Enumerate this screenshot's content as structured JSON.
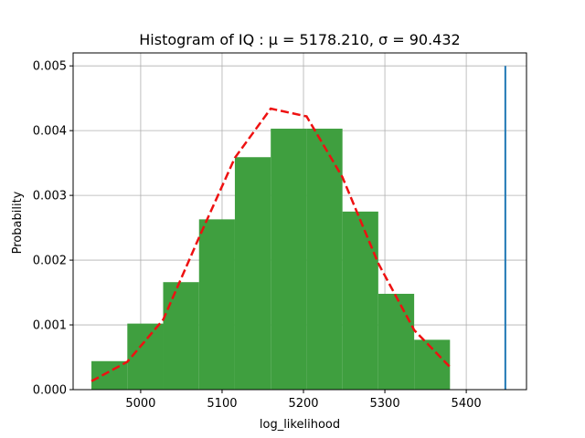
{
  "chart_data": {
    "type": "bar",
    "title": "Histogram of IQ :  μ = 5178.210,  σ = 90.432",
    "xlabel": "log_likelihood",
    "ylabel": "Probability",
    "xlim": [
      4917,
      5474
    ],
    "ylim": [
      0,
      0.0052
    ],
    "grid": true,
    "x_ticks": [
      5000,
      5100,
      5200,
      5300,
      5400
    ],
    "x_tick_labels": [
      "5000",
      "5100",
      "5200",
      "5300",
      "5400"
    ],
    "y_ticks": [
      0,
      0.001,
      0.002,
      0.003,
      0.004,
      0.005
    ],
    "y_tick_labels": [
      "0.000",
      "0.001",
      "0.002",
      "0.003",
      "0.004",
      "0.005"
    ],
    "histogram": {
      "color": "#3f9f3f",
      "bins": [
        {
          "start": 4939.5,
          "end": 4983.6,
          "value": 0.00044
        },
        {
          "start": 4983.6,
          "end": 5027.6,
          "value": 0.00102
        },
        {
          "start": 5027.6,
          "end": 5071.7,
          "value": 0.00166
        },
        {
          "start": 5071.7,
          "end": 5115.7,
          "value": 0.00263
        },
        {
          "start": 5115.7,
          "end": 5159.8,
          "value": 0.00359
        },
        {
          "start": 5159.8,
          "end": 5203.8,
          "value": 0.00403
        },
        {
          "start": 5203.8,
          "end": 5247.9,
          "value": 0.00403
        },
        {
          "start": 5247.9,
          "end": 5291.9,
          "value": 0.00275
        },
        {
          "start": 5291.9,
          "end": 5336.0,
          "value": 0.00148
        },
        {
          "start": 5336.0,
          "end": 5380.0,
          "value": 0.00077
        }
      ]
    },
    "normal_fit": {
      "color": "#ee1111",
      "style": "dashed",
      "x": [
        4939.5,
        4983.6,
        5027.6,
        5071.7,
        5115.7,
        5159.8,
        5203.8,
        5247.9,
        5291.9,
        5336.0,
        5380.0
      ],
      "y": [
        0.00013,
        0.00043,
        0.00108,
        0.00235,
        0.00358,
        0.00434,
        0.00422,
        0.00328,
        0.00195,
        0.00092,
        0.00035
      ]
    },
    "vertical_line": {
      "color": "#1f77b4",
      "x": 5448,
      "y_range": [
        0,
        0.005
      ]
    }
  }
}
